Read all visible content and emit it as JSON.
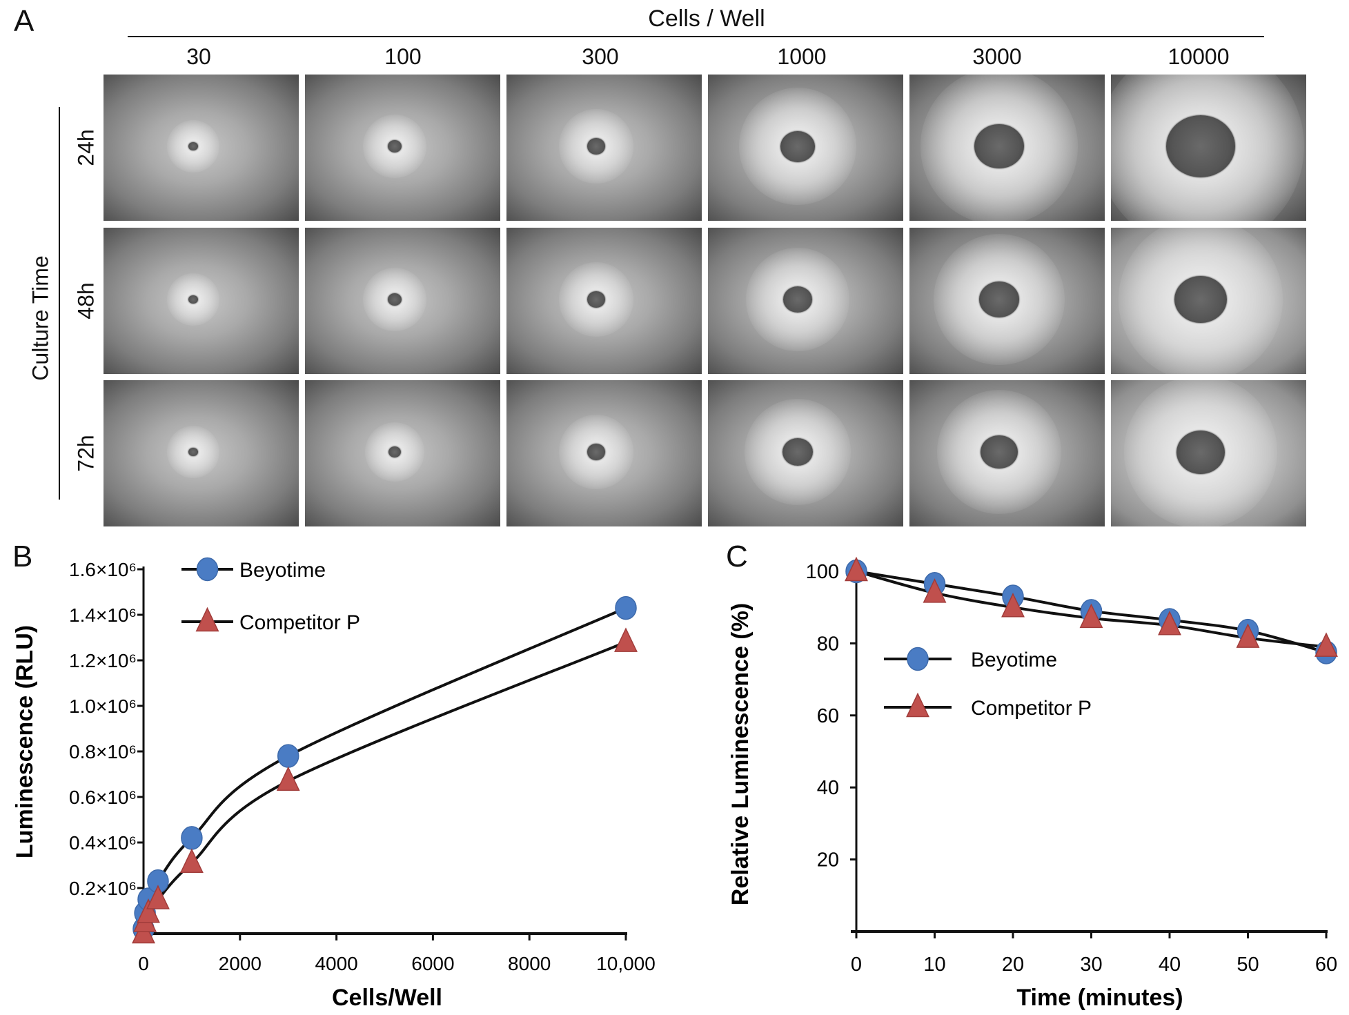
{
  "panel_a": {
    "letter": "A",
    "column_header": "Cells / Well",
    "columns": [
      "30",
      "100",
      "300",
      "1000",
      "3000",
      "10000"
    ],
    "row_header": "Culture Time",
    "rows": [
      "24h",
      "48h",
      "72h"
    ]
  },
  "chart_data": [
    {
      "panel": "B",
      "type": "line",
      "xlabel": "Cells/Well",
      "ylabel": "Luminescence (RLU)",
      "xlim": [
        0,
        10000
      ],
      "ylim": [
        0,
        1600000
      ],
      "x_ticks": [
        0,
        2000,
        4000,
        6000,
        8000,
        10000
      ],
      "x_tick_labels": [
        "0",
        "2000",
        "4000",
        "6000",
        "8000",
        "10,000"
      ],
      "y_ticks": [
        200000,
        400000,
        600000,
        800000,
        1000000,
        1200000,
        1400000,
        1600000
      ],
      "y_tick_labels": [
        "0.2×10⁶",
        "0.4×10⁶",
        "0.6×10⁶",
        "0.8×10⁶",
        "1.0×10⁶",
        "1.2×10⁶",
        "1.4×10⁶",
        "1.6×10⁶"
      ],
      "grid": false,
      "legend_placement": "top-left",
      "x": [
        0,
        30,
        100,
        300,
        1000,
        3000,
        10000
      ],
      "series": [
        {
          "name": "Beyotime",
          "marker": "circle",
          "color": "#4a7cc4",
          "values": [
            20000,
            90000,
            150000,
            230000,
            420000,
            780000,
            1430000
          ]
        },
        {
          "name": "Competitor P",
          "marker": "triangle",
          "color": "#c0504d",
          "values": [
            0,
            50000,
            90000,
            150000,
            310000,
            670000,
            1280000
          ]
        }
      ]
    },
    {
      "panel": "C",
      "type": "line",
      "xlabel": "Time (minutes)",
      "ylabel": "Relative Luminescence (%)",
      "xlim": [
        0,
        60
      ],
      "ylim": [
        0,
        100
      ],
      "x_ticks": [
        0,
        10,
        20,
        30,
        40,
        50,
        60
      ],
      "x_tick_labels": [
        "0",
        "10",
        "20",
        "30",
        "40",
        "50",
        "60"
      ],
      "y_ticks": [
        20,
        40,
        60,
        80,
        100
      ],
      "y_tick_labels": [
        "20",
        "40",
        "60",
        "80",
        "100"
      ],
      "grid": false,
      "legend_placement": "upper-middle",
      "x": [
        0,
        10,
        20,
        30,
        40,
        50,
        60
      ],
      "series": [
        {
          "name": "Beyotime",
          "marker": "circle",
          "color": "#4a7cc4",
          "values": [
            100,
            96.5,
            93,
            89,
            86.5,
            83.5,
            77.5
          ]
        },
        {
          "name": "Competitor P",
          "marker": "triangle",
          "color": "#c0504d",
          "values": [
            100,
            94,
            90,
            87,
            85,
            81.5,
            79
          ]
        }
      ]
    }
  ]
}
